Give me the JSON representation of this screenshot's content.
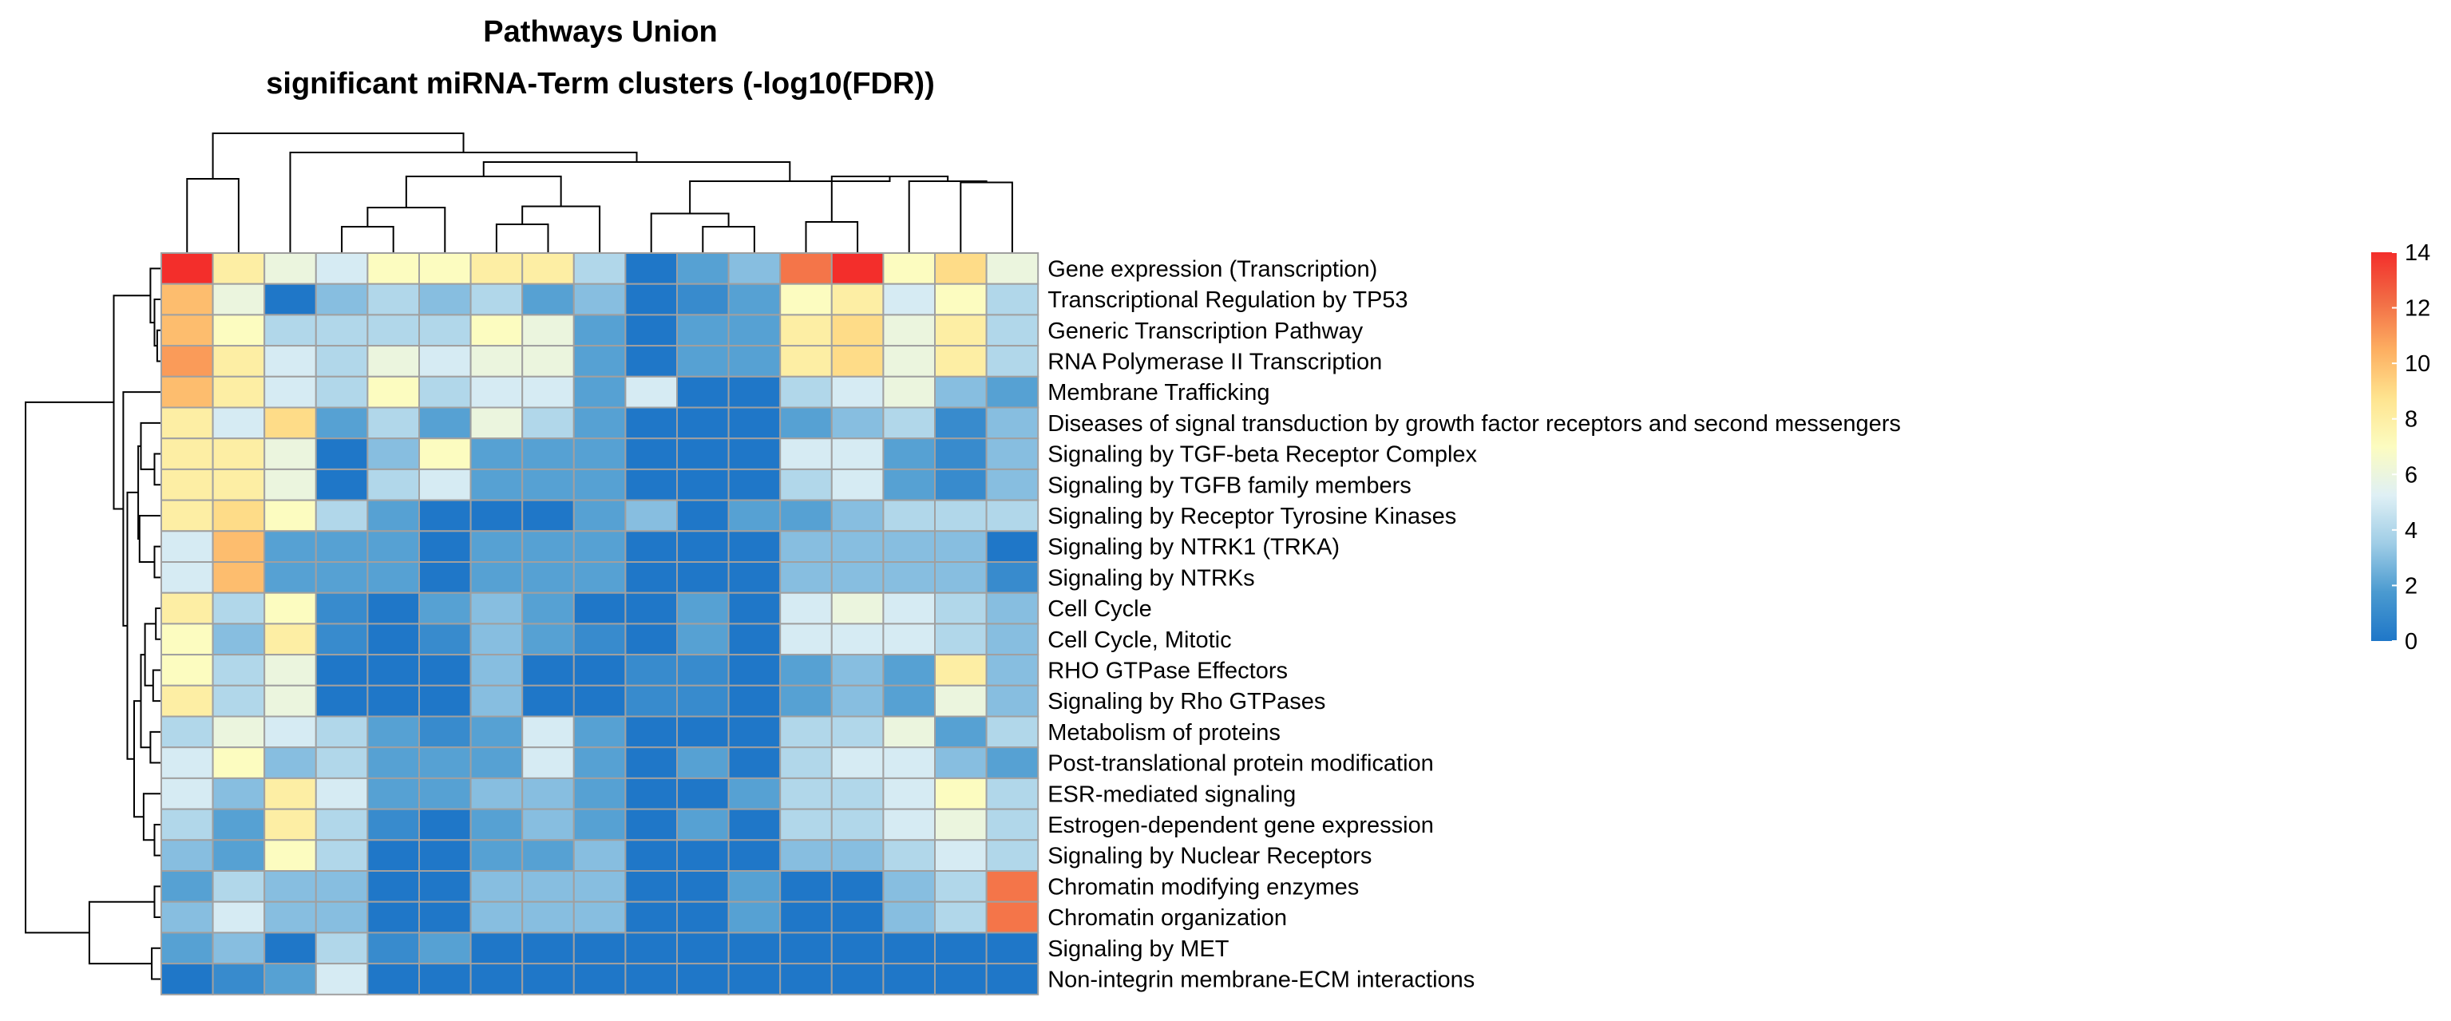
{
  "chart_data": {
    "type": "heatmap",
    "title": "Pathways Union",
    "subtitle": "significant miRNA-Term clusters (-log10(FDR))",
    "rows": [
      "Gene expression (Transcription)",
      "Transcriptional Regulation by TP53",
      "Generic Transcription Pathway",
      "RNA Polymerase II Transcription",
      "Membrane Trafficking",
      "Diseases of signal transduction by growth factor receptors and second messengers",
      "Signaling by TGF-beta Receptor Complex",
      "Signaling by TGFB family members",
      "Signaling by Receptor Tyrosine Kinases",
      "Signaling by NTRK1 (TRKA)",
      "Signaling by NTRKs",
      "Cell Cycle",
      "Cell Cycle, Mitotic",
      "RHO GTPase Effectors",
      "Signaling by Rho GTPases",
      "Metabolism of proteins",
      "Post-translational protein modification",
      "ESR-mediated signaling",
      "Estrogen-dependent gene expression",
      "Signaling by Nuclear Receptors",
      "Chromatin modifying enzymes",
      "Chromatin organization",
      "Signaling by MET",
      "Non-integrin membrane-ECM interactions"
    ],
    "values": [
      [
        14,
        8,
        6,
        5,
        7,
        7,
        8,
        8,
        4,
        0,
        2,
        3,
        12,
        14,
        7,
        9,
        6
      ],
      [
        10,
        6,
        0,
        3,
        4,
        3,
        4,
        2,
        3,
        0,
        1,
        2,
        7,
        8,
        5,
        7,
        4
      ],
      [
        10,
        7,
        4,
        4,
        4,
        4,
        7,
        6,
        2,
        0,
        2,
        2,
        8,
        9,
        6,
        8,
        4
      ],
      [
        11,
        8,
        5,
        4,
        6,
        5,
        6,
        6,
        2,
        0,
        2,
        2,
        8,
        9,
        6,
        8,
        4
      ],
      [
        10,
        8,
        5,
        4,
        7,
        4,
        5,
        5,
        2,
        5,
        0,
        0,
        4,
        5,
        6,
        3,
        2
      ],
      [
        8,
        5,
        9,
        2,
        4,
        2,
        6,
        4,
        2,
        0,
        0,
        0,
        2,
        3,
        4,
        1,
        3
      ],
      [
        8,
        8,
        6,
        0,
        3,
        7,
        2,
        2,
        2,
        0,
        0,
        0,
        5,
        5,
        2,
        1,
        3
      ],
      [
        8,
        8,
        6,
        0,
        4,
        5,
        2,
        2,
        2,
        0,
        0,
        0,
        4,
        5,
        2,
        1,
        3
      ],
      [
        8,
        9,
        7,
        4,
        2,
        0,
        0,
        0,
        2,
        3,
        0,
        2,
        2,
        3,
        4,
        4,
        4
      ],
      [
        5,
        10,
        2,
        2,
        2,
        0,
        2,
        2,
        2,
        0,
        0,
        0,
        3,
        3,
        3,
        3,
        0
      ],
      [
        5,
        10,
        2,
        2,
        2,
        0,
        2,
        2,
        2,
        0,
        0,
        0,
        3,
        3,
        3,
        3,
        1
      ],
      [
        8,
        4,
        7,
        1,
        0,
        2,
        3,
        2,
        0,
        0,
        2,
        0,
        5,
        6,
        5,
        4,
        3
      ],
      [
        7,
        3,
        8,
        1,
        0,
        1,
        3,
        2,
        1,
        0,
        2,
        0,
        5,
        5,
        5,
        4,
        3
      ],
      [
        7,
        4,
        6,
        0,
        0,
        0,
        3,
        0,
        0,
        1,
        1,
        0,
        2,
        3,
        2,
        8,
        3
      ],
      [
        8,
        4,
        6,
        0,
        0,
        0,
        3,
        0,
        0,
        1,
        1,
        0,
        2,
        3,
        2,
        6,
        3
      ],
      [
        4,
        6,
        5,
        4,
        2,
        1,
        2,
        5,
        2,
        0,
        0,
        0,
        4,
        4,
        6,
        2,
        4
      ],
      [
        5,
        7,
        3,
        4,
        2,
        2,
        2,
        5,
        2,
        0,
        2,
        0,
        4,
        5,
        5,
        3,
        2
      ],
      [
        5,
        3,
        8,
        5,
        2,
        2,
        3,
        3,
        2,
        0,
        0,
        2,
        4,
        4,
        5,
        7,
        4
      ],
      [
        4,
        2,
        8,
        4,
        1,
        0,
        2,
        3,
        2,
        0,
        2,
        0,
        4,
        4,
        5,
        6,
        4
      ],
      [
        3,
        2,
        7,
        4,
        0,
        0,
        2,
        2,
        3,
        0,
        0,
        0,
        3,
        3,
        4,
        5,
        4
      ],
      [
        2,
        4,
        3,
        3,
        0,
        0,
        3,
        3,
        3,
        0,
        0,
        2,
        0,
        0,
        3,
        4,
        12
      ],
      [
        3,
        5,
        3,
        3,
        0,
        0,
        3,
        3,
        3,
        0,
        0,
        2,
        0,
        0,
        3,
        4,
        12
      ],
      [
        2,
        3,
        0,
        4,
        1,
        2,
        0,
        0,
        0,
        0,
        0,
        0,
        0,
        0,
        0,
        0,
        0
      ],
      [
        0,
        1,
        2,
        5,
        0,
        0,
        0,
        0,
        0,
        0,
        0,
        0,
        0,
        0,
        0,
        0,
        0
      ]
    ],
    "color_scale": {
      "min": 0,
      "max": 14,
      "stops": [
        "#1f77c8",
        "#4a9ad0",
        "#9fcde6",
        "#dff0f5",
        "#fcfcc0",
        "#fee48f",
        "#fdae61",
        "#f26c45",
        "#f32e2b"
      ]
    },
    "legend": {
      "position": "right",
      "ticks": [
        "14",
        "12",
        "10",
        "8",
        "6",
        "4",
        "2",
        "0"
      ]
    },
    "cell_border_color": "#a0a0a0"
  }
}
